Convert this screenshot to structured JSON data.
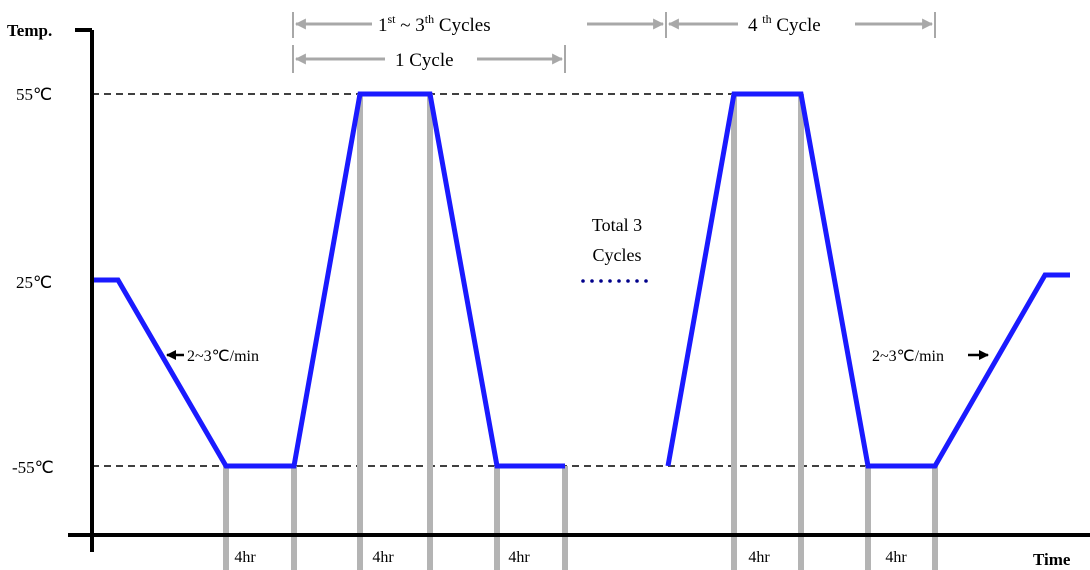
{
  "axes": {
    "y_label": "Temp.",
    "x_label": "Time",
    "y_ticks": [
      "55℃",
      "25℃",
      "-55℃"
    ]
  },
  "annotations": {
    "cycles_range": {
      "prefix": "1",
      "sup1": "st",
      "mid": " ~  3",
      "sup2": "th",
      "suffix": " Cycles"
    },
    "fourth_cycle": {
      "prefix": "4 ",
      "sup": "th",
      "suffix": " Cycle"
    },
    "one_cycle": "1 Cycle",
    "total_line1": "Total 3",
    "total_line2": "Cycles",
    "rate_left": "2~3℃/min",
    "rate_right": "2~3℃/min"
  },
  "dwell_labels": [
    "4hr",
    "4hr",
    "4hr",
    "4hr",
    "4hr"
  ],
  "colors": {
    "profile": "#1a1aff",
    "dwell_bars": "#b4b4b4",
    "arrows": "#a8a8a8",
    "dots": "#00008b",
    "axis": "#000000"
  }
}
